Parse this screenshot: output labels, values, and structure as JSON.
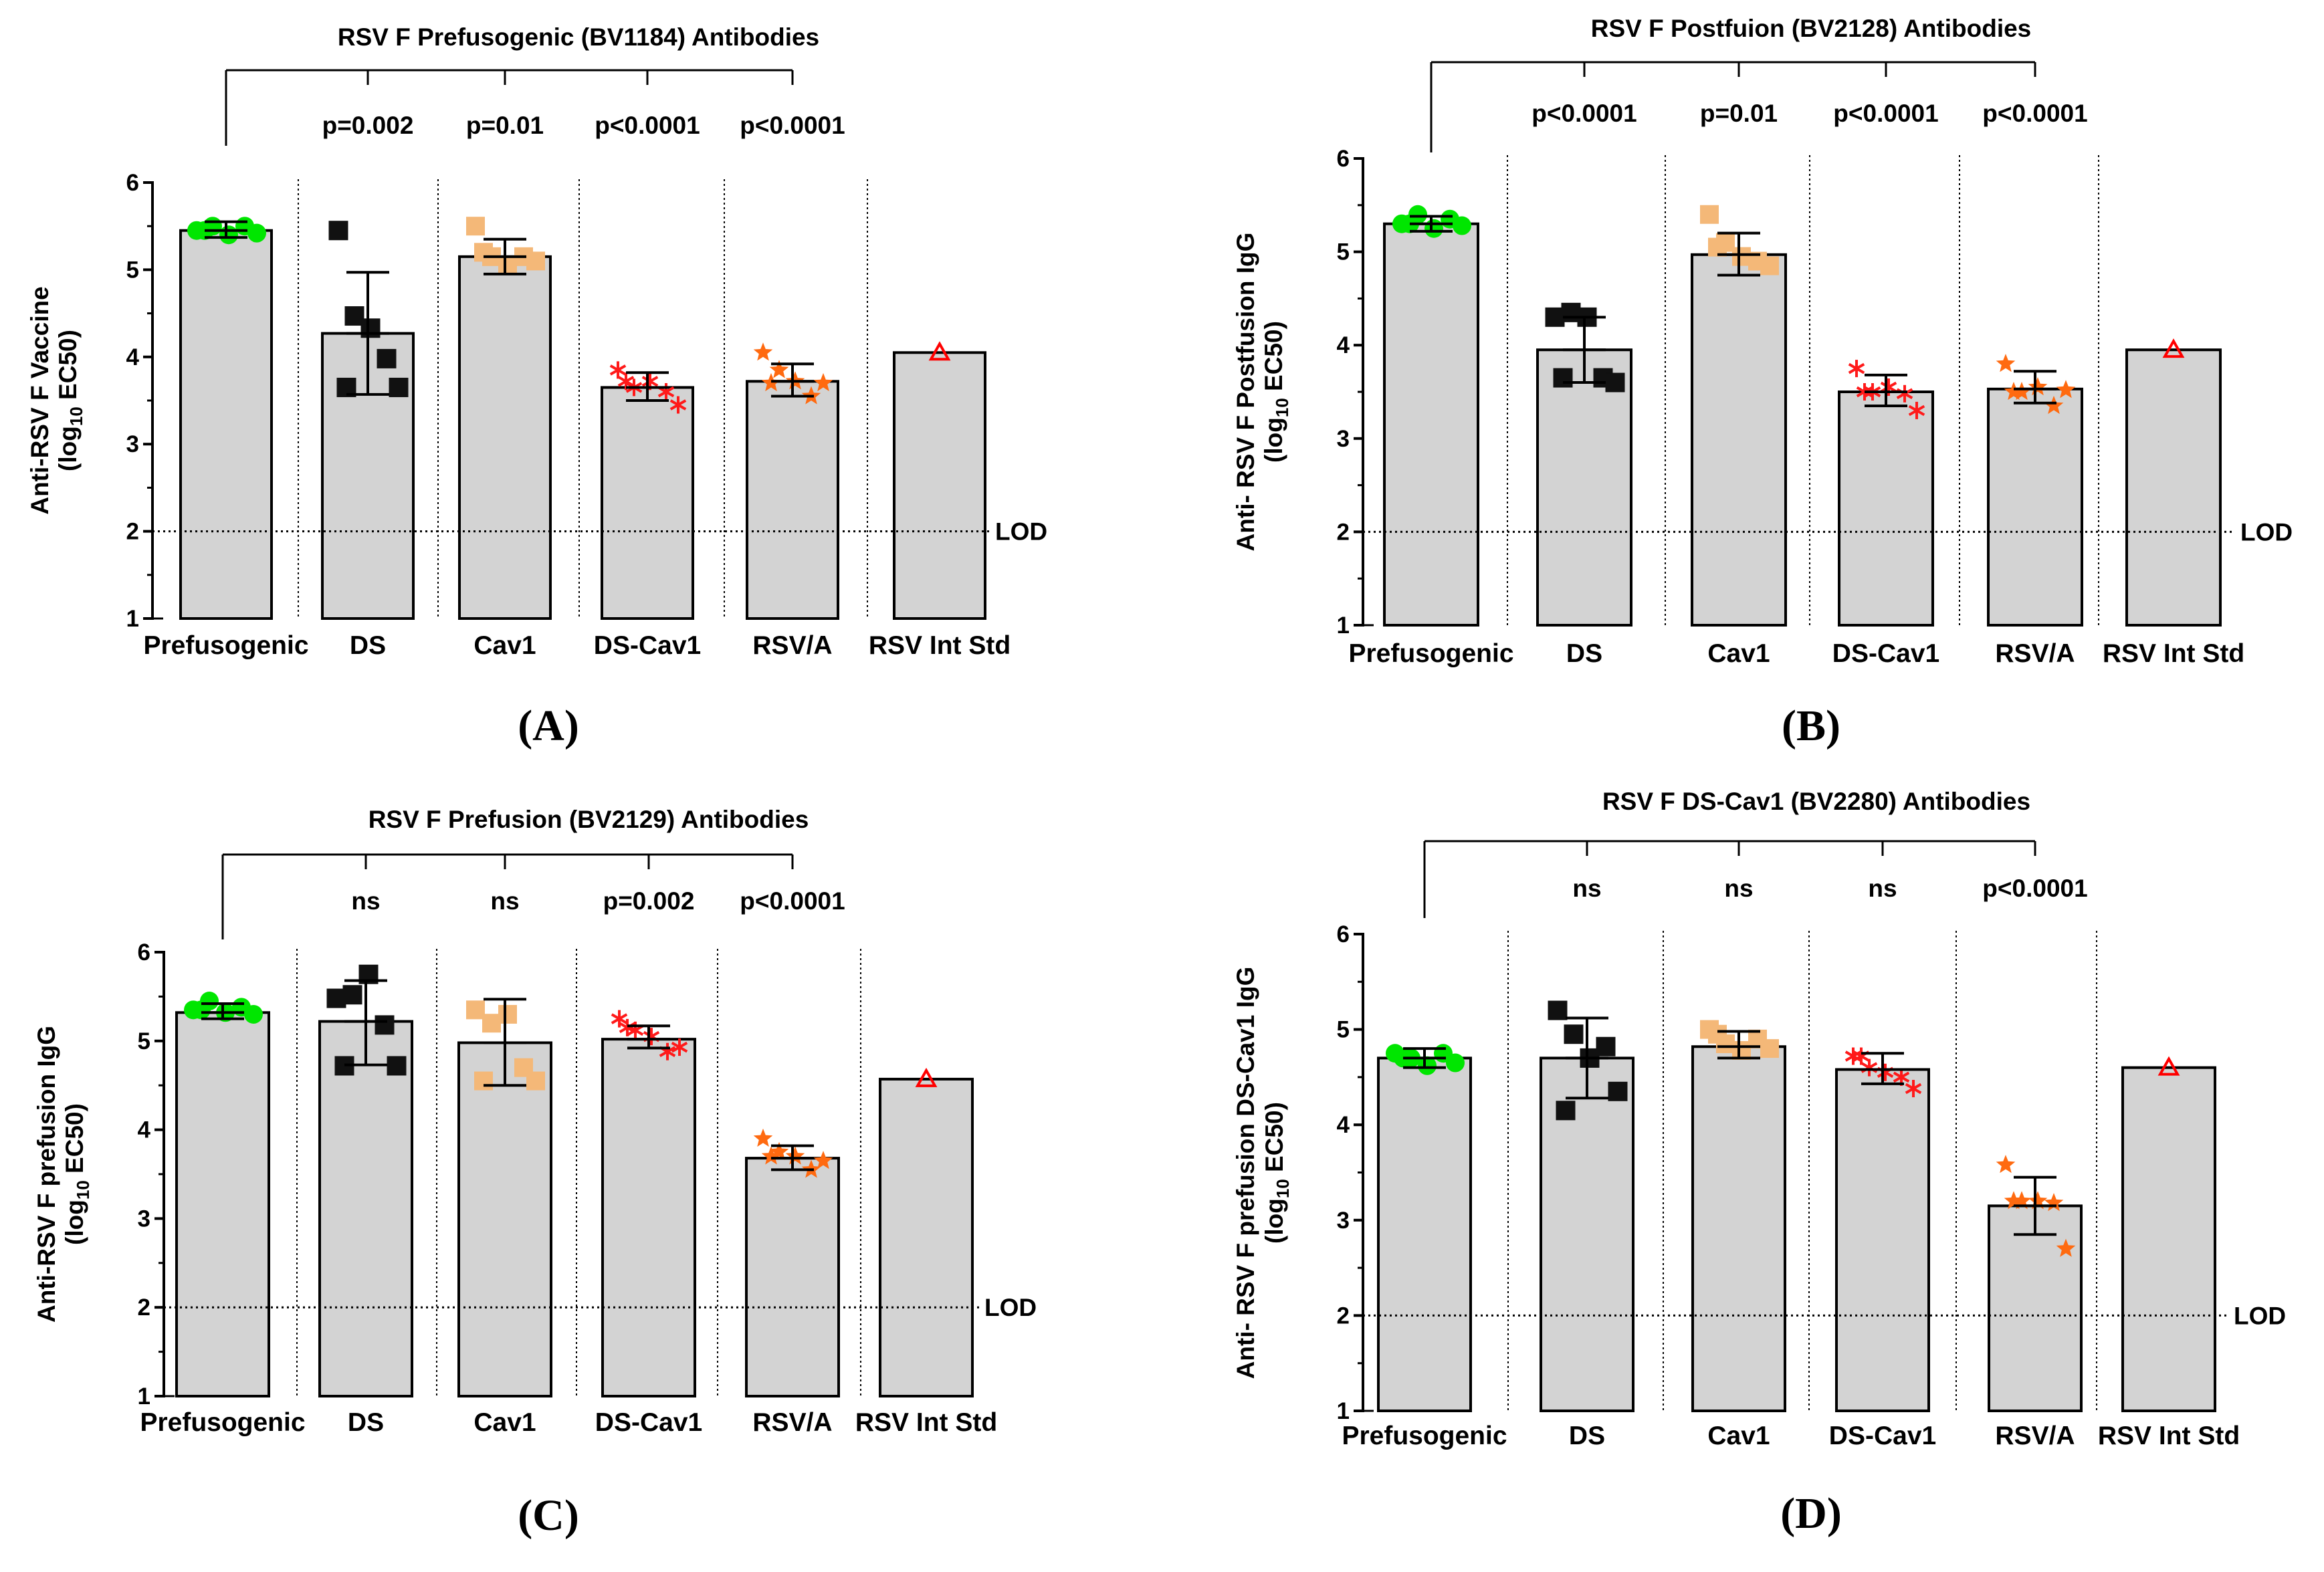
{
  "chart_data": [
    {
      "type": "bar",
      "panel_label": "(A)",
      "title": "RSV F Prefusogenic (BV1184) Antibodies",
      "ylabel_line1": "Anti-RSV F Vaccine",
      "ylabel_line2_pre": "(log",
      "ylabel_line2_sub": "10",
      "ylabel_line2_post": " EC50)",
      "ylim": [
        1,
        6
      ],
      "yticks": [
        "1",
        "2",
        "3",
        "4",
        "5",
        "6"
      ],
      "lod_value": 2,
      "lod_label": "LOD",
      "categories": [
        "Prefusogenic",
        "DS",
        "Cav1",
        "DS-Cav1",
        "RSV/A",
        "RSV Int Std"
      ],
      "values": [
        5.45,
        4.27,
        5.15,
        3.65,
        3.72,
        4.05
      ],
      "error_bars": [
        [
          5.37,
          5.55
        ],
        [
          3.57,
          4.97
        ],
        [
          4.95,
          5.35
        ],
        [
          3.5,
          3.82
        ],
        [
          3.55,
          3.92
        ],
        null
      ],
      "points": [
        [
          5.45,
          5.5,
          5.4,
          5.5,
          5.42,
          5.45
        ],
        [
          5.45,
          4.47,
          4.33,
          3.98,
          3.65,
          3.65
        ],
        [
          5.5,
          5.15,
          5.05,
          5.15,
          5.1,
          5.2
        ],
        [
          3.85,
          3.65,
          3.72,
          3.6,
          3.45,
          3.72
        ],
        [
          4.05,
          3.85,
          3.72,
          3.55,
          3.7,
          3.7
        ],
        [
          4.05
        ]
      ],
      "comparisons": [
        "p=0.002",
        "p=0.01",
        "p<0.0001",
        "p<0.0001"
      ]
    },
    {
      "type": "bar",
      "panel_label": "(B)",
      "title": "RSV F Postfuion (BV2128) Antibodies",
      "ylabel_line1": "Anti- RSV F Postfusion IgG",
      "ylabel_line2_pre": "(log",
      "ylabel_line2_sub": "10",
      "ylabel_line2_post": " EC50)",
      "ylim": [
        1,
        6
      ],
      "yticks": [
        "1",
        "2",
        "3",
        "4",
        "5",
        "6"
      ],
      "lod_value": 2,
      "lod_label": "LOD",
      "categories": [
        "Prefusogenic",
        "DS",
        "Cav1",
        "DS-Cav1",
        "RSV/A",
        "RSV Int Std"
      ],
      "values": [
        5.3,
        3.95,
        4.97,
        3.5,
        3.53,
        3.95
      ],
      "error_bars": [
        [
          5.22,
          5.38
        ],
        [
          3.6,
          4.3
        ],
        [
          4.75,
          5.2
        ],
        [
          3.35,
          3.68
        ],
        [
          3.38,
          3.72
        ],
        null
      ],
      "points": [
        [
          5.3,
          5.4,
          5.25,
          5.35,
          5.28,
          5.3
        ],
        [
          4.3,
          4.35,
          4.3,
          3.65,
          3.6,
          3.65
        ],
        [
          5.4,
          5.1,
          4.95,
          4.9,
          4.85,
          5.05
        ],
        [
          3.75,
          3.5,
          3.55,
          3.48,
          3.3,
          3.5
        ],
        [
          3.8,
          3.5,
          3.55,
          3.35,
          3.52,
          3.5
        ],
        [
          3.95
        ]
      ],
      "comparisons": [
        "p<0.0001",
        "p=0.01",
        "p<0.0001",
        "p<0.0001"
      ]
    },
    {
      "type": "bar",
      "panel_label": "(C)",
      "title": "RSV F Prefusion (BV2129) Antibodies",
      "ylabel_line1": "Anti-RSV F prefusion IgG",
      "ylabel_line2_pre": "(log",
      "ylabel_line2_sub": "10",
      "ylabel_line2_post": " EC50)",
      "ylim": [
        1,
        6
      ],
      "yticks": [
        "1",
        "2",
        "3",
        "4",
        "5",
        "6"
      ],
      "lod_value": 2,
      "lod_label": "LOD",
      "categories": [
        "Prefusogenic",
        "DS",
        "Cav1",
        "DS-Cav1",
        "RSV/A",
        "RSV Int Std"
      ],
      "values": [
        5.32,
        5.22,
        4.98,
        5.02,
        3.68,
        4.57
      ],
      "error_bars": [
        [
          5.25,
          5.42
        ],
        [
          4.73,
          5.68
        ],
        [
          4.5,
          5.47
        ],
        [
          4.92,
          5.17
        ],
        [
          3.55,
          3.82
        ],
        null
      ],
      "points": [
        [
          5.35,
          5.45,
          5.32,
          5.38,
          5.3,
          5.35
        ],
        [
          5.48,
          5.52,
          5.75,
          5.18,
          4.72,
          4.72
        ],
        [
          5.35,
          5.2,
          5.3,
          4.7,
          4.55,
          4.55
        ],
        [
          5.25,
          5.12,
          5.05,
          4.88,
          4.93,
          5.15
        ],
        [
          3.9,
          3.75,
          3.7,
          3.55,
          3.65,
          3.7
        ],
        [
          4.57
        ]
      ],
      "comparisons": [
        "ns",
        "ns",
        "p=0.002",
        "p<0.0001"
      ]
    },
    {
      "type": "bar",
      "panel_label": "(D)",
      "title": "RSV F DS-Cav1 (BV2280) Antibodies",
      "ylabel_line1": "Anti- RSV F prefusion DS-Cav1 IgG",
      "ylabel_line2_pre": "(log",
      "ylabel_line2_sub": "10",
      "ylabel_line2_post": " EC50)",
      "ylim": [
        1,
        6
      ],
      "yticks": [
        "1",
        "2",
        "3",
        "4",
        "5",
        "6"
      ],
      "lod_value": 2,
      "lod_label": "LOD",
      "categories": [
        "Prefusogenic",
        "DS",
        "Cav1",
        "DS-Cav1",
        "RSV/A",
        "RSV Int Std"
      ],
      "values": [
        4.7,
        4.7,
        4.82,
        4.58,
        3.15,
        4.6
      ],
      "error_bars": [
        [
          4.6,
          4.8
        ],
        [
          4.28,
          5.12
        ],
        [
          4.7,
          4.98
        ],
        [
          4.43,
          4.75
        ],
        [
          2.85,
          3.45
        ],
        null
      ],
      "points": [
        [
          4.75,
          4.7,
          4.62,
          4.75,
          4.65,
          4.7
        ],
        [
          5.2,
          4.95,
          4.7,
          4.82,
          4.35,
          4.15
        ],
        [
          5.0,
          4.85,
          4.78,
          4.9,
          4.8,
          4.95
        ],
        [
          4.72,
          4.6,
          4.55,
          4.5,
          4.38,
          4.72
        ],
        [
          3.58,
          3.2,
          3.2,
          3.18,
          2.7,
          3.2
        ],
        [
          4.6
        ]
      ],
      "comparisons": [
        "ns",
        "ns",
        "ns",
        "p<0.0001"
      ]
    }
  ],
  "series_colors": [
    "#00e600",
    "#111111",
    "#f4b878",
    "#ff1a1a",
    "#ff6a10",
    "#ff0000"
  ],
  "series_markers": [
    "circle",
    "square",
    "square",
    "asterisk",
    "star",
    "open-triangle"
  ],
  "bar_fill": "#d3d3d3"
}
